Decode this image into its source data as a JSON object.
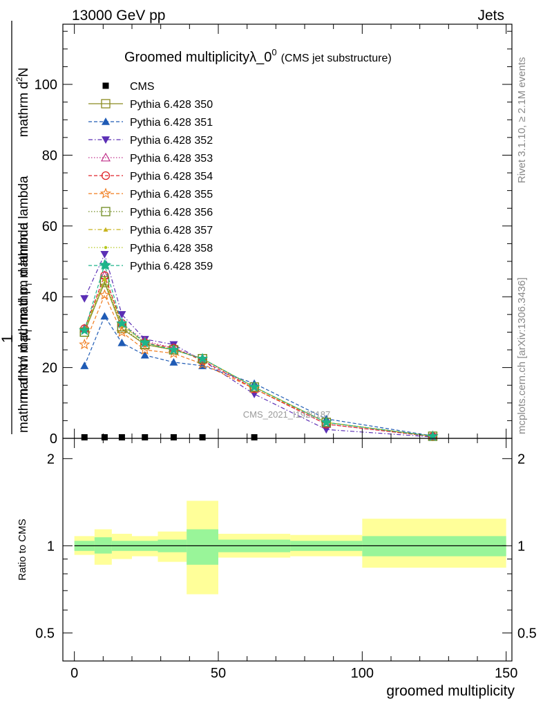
{
  "header": {
    "left": "13000 GeV pp",
    "right": "Jets"
  },
  "side": {
    "rivet": "Rivet 3.1.10, ≥ 2.1M events",
    "mcplots": "mcplots.cern.ch [arXiv:1306.3436]"
  },
  "chart_data": {
    "type": "line",
    "title": "Groomed multiplicityλ_0",
    "title_sup": "0",
    "subtitle": "(CMS jet substructure)",
    "watermark": "CMS_2021_I1920187",
    "ylabel": {
      "one": "1",
      "frac_top": "mathrm d",
      "frac_top_sup": "2",
      "frac_top_rest": "N",
      "frac_bottom": "mathrm d p",
      "frac_bottom_sub": "T",
      "frac_bottom_rest": " mathrm d lambda",
      "main": "mathrm d N / mathrm d p",
      "main_sub": "T",
      "main_rest": " mathrm d lambda"
    },
    "xlabel": "groomed multiplicity",
    "ratio_ylabel": "Ratio to CMS",
    "xlim": [
      -4,
      152
    ],
    "ylim": [
      0,
      117
    ],
    "ratio_ylim": [
      0.4,
      2.35
    ],
    "x_ticks": [
      0,
      50,
      100,
      150
    ],
    "y_ticks": [
      0,
      20,
      40,
      60,
      80,
      100
    ],
    "ratio_ticks": [
      0.5,
      1,
      2
    ],
    "ratio_tick_labels": [
      "0.5",
      "1",
      "2"
    ],
    "x": [
      3.5,
      10.5,
      16.5,
      24.5,
      34.5,
      44.5,
      62.5,
      87.5,
      124.5
    ],
    "data": {
      "name": "CMS",
      "values": [
        0.3,
        0.3,
        0.3,
        0.3,
        0.3,
        0.3,
        0.3,
        0,
        0
      ]
    },
    "series": [
      {
        "name": "Pythia 6.428 350",
        "color": "#8a8a1e",
        "marker": "square-open",
        "dash": "solid",
        "values": [
          30.0,
          44.0,
          31.0,
          26.5,
          25.0,
          22.5,
          14.5,
          4.5,
          0.6
        ]
      },
      {
        "name": "Pythia 6.428 351",
        "color": "#1f5bb5",
        "marker": "triangle-up",
        "dash": "dashed",
        "values": [
          20.5,
          34.5,
          27.0,
          23.5,
          21.5,
          20.5,
          15.5,
          5.5,
          0.7
        ]
      },
      {
        "name": "Pythia 6.428 352",
        "color": "#5b2fb5",
        "marker": "triangle-down",
        "dash": "dashdot",
        "values": [
          39.5,
          52.0,
          35.0,
          28.0,
          26.5,
          22.0,
          12.5,
          2.5,
          0.4
        ]
      },
      {
        "name": "Pythia 6.428 353",
        "color": "#c0308a",
        "marker": "triangle-up-open",
        "dash": "dotted",
        "values": [
          31.0,
          46.0,
          32.5,
          27.5,
          25.5,
          22.5,
          14.0,
          4.0,
          0.5
        ]
      },
      {
        "name": "Pythia 6.428 354",
        "color": "#e0242a",
        "marker": "circle-open",
        "dash": "dashed",
        "values": [
          31.0,
          46.0,
          32.5,
          27.0,
          25.5,
          22.0,
          14.0,
          4.0,
          0.5
        ]
      },
      {
        "name": "Pythia 6.428 355",
        "color": "#f07b1c",
        "marker": "star-open",
        "dash": "dashed",
        "values": [
          26.5,
          40.5,
          30.0,
          25.0,
          24.0,
          21.0,
          14.0,
          4.5,
          0.6
        ]
      },
      {
        "name": "Pythia 6.428 356",
        "color": "#6e8a1e",
        "marker": "square-open",
        "dash": "dotted",
        "values": [
          30.0,
          44.5,
          31.5,
          26.5,
          25.0,
          22.5,
          14.5,
          4.5,
          0.6
        ]
      },
      {
        "name": "Pythia 6.428 357",
        "color": "#c8b41e",
        "marker": "triangle-up-small",
        "dash": "dashdot",
        "values": [
          30.5,
          45.0,
          32.0,
          27.0,
          25.0,
          22.5,
          14.5,
          4.5,
          0.6
        ]
      },
      {
        "name": "Pythia 6.428 358",
        "color": "#b4c81e",
        "marker": "dot",
        "dash": "dotted",
        "values": [
          30.5,
          45.0,
          32.0,
          27.0,
          25.0,
          22.5,
          14.5,
          4.5,
          0.6
        ]
      },
      {
        "name": "Pythia 6.428 359",
        "color": "#1eb48a",
        "marker": "star-filled",
        "dash": "dashed",
        "values": [
          30.5,
          49.0,
          32.5,
          27.0,
          25.0,
          22.5,
          14.5,
          4.5,
          0.6
        ]
      }
    ],
    "uncertainty_bins": [
      {
        "lo": 0,
        "hi": 7,
        "inner": [
          0.96,
          1.04
        ],
        "outer": [
          0.93,
          1.08
        ]
      },
      {
        "lo": 7,
        "hi": 13,
        "inner": [
          0.94,
          1.07
        ],
        "outer": [
          0.86,
          1.14
        ]
      },
      {
        "lo": 13,
        "hi": 20,
        "inner": [
          0.96,
          1.04
        ],
        "outer": [
          0.9,
          1.1
        ]
      },
      {
        "lo": 20,
        "hi": 29,
        "inner": [
          0.96,
          1.04
        ],
        "outer": [
          0.92,
          1.08
        ]
      },
      {
        "lo": 29,
        "hi": 39,
        "inner": [
          0.95,
          1.05
        ],
        "outer": [
          0.88,
          1.12
        ]
      },
      {
        "lo": 39,
        "hi": 50,
        "inner": [
          0.86,
          1.14
        ],
        "outer": [
          0.68,
          1.43
        ]
      },
      {
        "lo": 50,
        "hi": 75,
        "inner": [
          0.95,
          1.05
        ],
        "outer": [
          0.91,
          1.1
        ]
      },
      {
        "lo": 75,
        "hi": 100,
        "inner": [
          0.96,
          1.04
        ],
        "outer": [
          0.92,
          1.09
        ]
      },
      {
        "lo": 100,
        "hi": 150,
        "inner": [
          0.92,
          1.08
        ],
        "outer": [
          0.84,
          1.24
        ]
      }
    ],
    "band_colors": {
      "inner": "#99f599",
      "outer": "#ffff99"
    }
  }
}
